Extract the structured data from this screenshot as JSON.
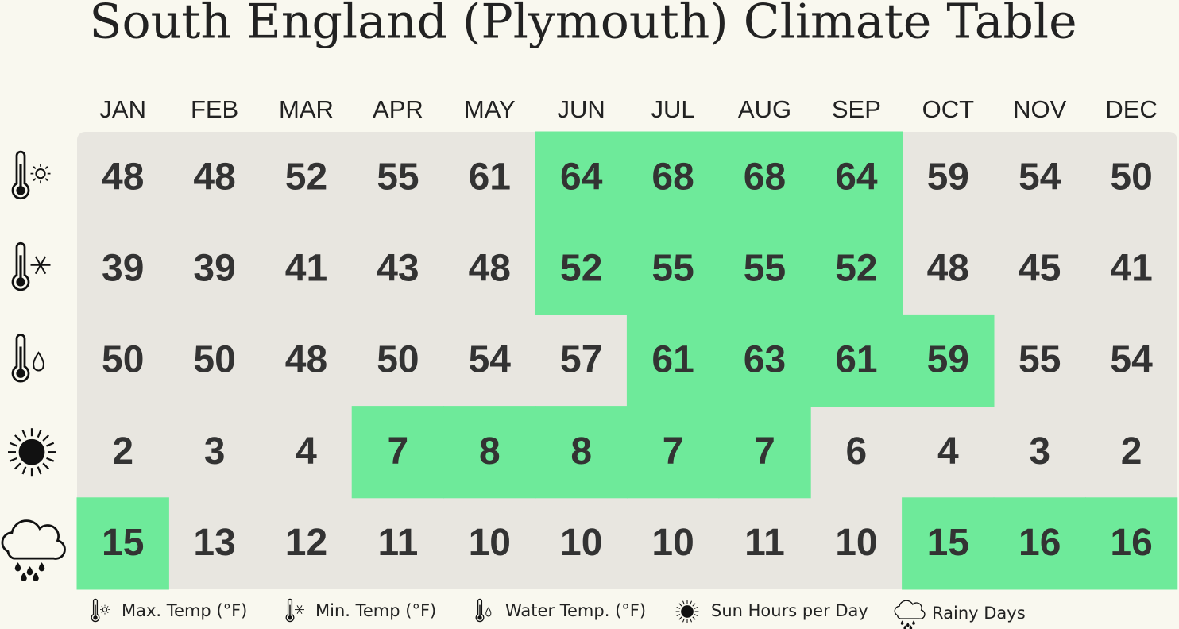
{
  "title": "South England (Plymouth) Climate Table",
  "months": [
    "JAN",
    "FEB",
    "MAR",
    "APR",
    "MAY",
    "JUN",
    "JUL",
    "AUG",
    "SEP",
    "OCT",
    "NOV",
    "DEC"
  ],
  "highlight_color": "#6eea9a",
  "base_color": "#e8e6e0",
  "rows": [
    {
      "label": "Max. Temp (°F)",
      "icon": "max",
      "values": [
        48,
        48,
        52,
        55,
        61,
        64,
        68,
        68,
        64,
        59,
        54,
        50
      ],
      "highlighted": [
        false,
        false,
        false,
        false,
        false,
        true,
        true,
        true,
        true,
        false,
        false,
        false
      ]
    },
    {
      "label": "Min. Temp (°F)",
      "icon": "min",
      "values": [
        39,
        39,
        41,
        43,
        48,
        52,
        55,
        55,
        52,
        48,
        45,
        41
      ],
      "highlighted": [
        false,
        false,
        false,
        false,
        false,
        true,
        true,
        true,
        true,
        false,
        false,
        false
      ]
    },
    {
      "label": "Water Temp. (°F)",
      "icon": "water",
      "values": [
        50,
        50,
        48,
        50,
        54,
        57,
        61,
        63,
        61,
        59,
        55,
        54
      ],
      "highlighted": [
        false,
        false,
        false,
        false,
        false,
        false,
        true,
        true,
        true,
        true,
        false,
        false
      ]
    },
    {
      "label": "Sun Hours per Day",
      "icon": "sun",
      "values": [
        2,
        3,
        4,
        7,
        8,
        8,
        7,
        7,
        6,
        4,
        3,
        2
      ],
      "highlighted": [
        false,
        false,
        false,
        true,
        true,
        true,
        true,
        true,
        false,
        false,
        false,
        false
      ]
    },
    {
      "label": "Rainy Days",
      "icon": "rain",
      "values": [
        15,
        13,
        12,
        11,
        10,
        10,
        10,
        11,
        10,
        15,
        16,
        16
      ],
      "highlighted": [
        true,
        false,
        false,
        false,
        false,
        false,
        false,
        false,
        false,
        true,
        true,
        true
      ]
    }
  ]
}
